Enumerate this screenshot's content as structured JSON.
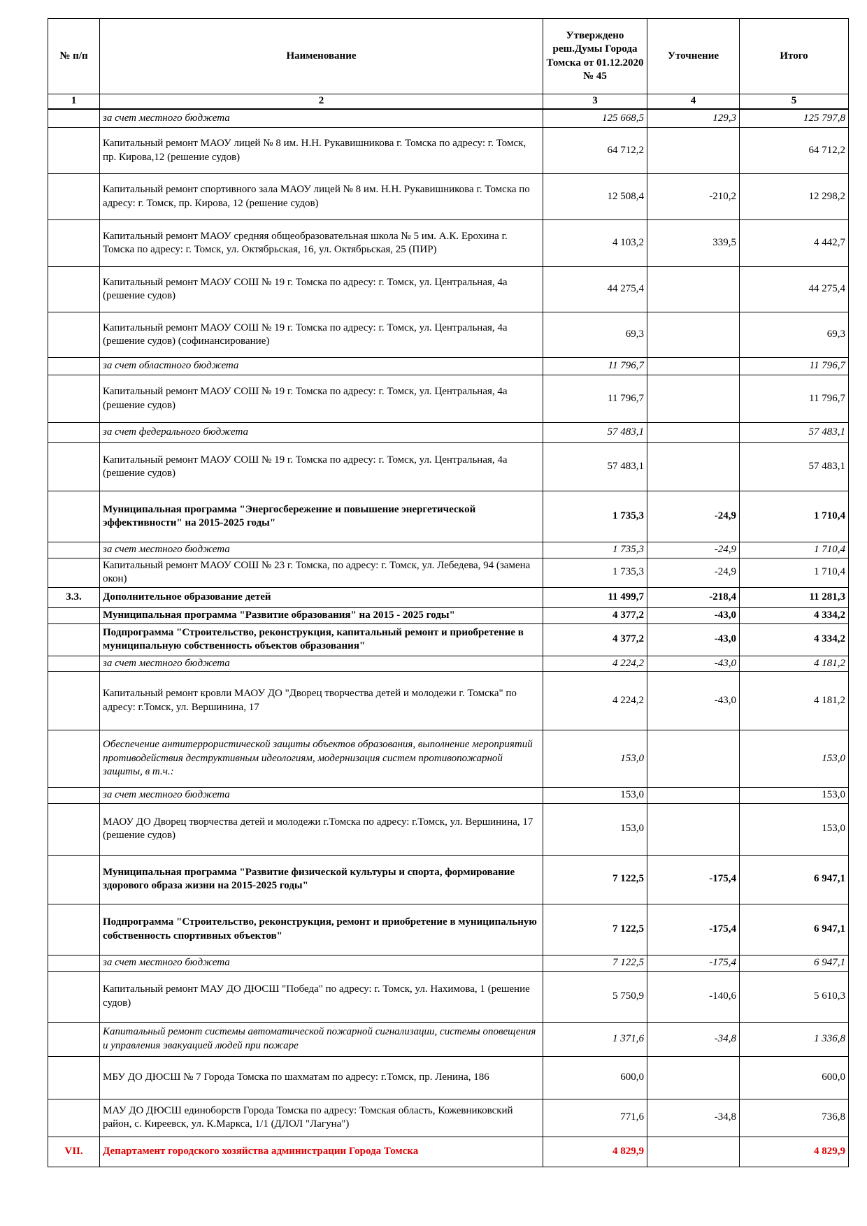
{
  "header": {
    "col1": "№ п/п",
    "col2": "Наименование",
    "col3": "Утверждено реш.Думы Города Томска от 01.12.2020 № 45",
    "col4": "Уточнение",
    "col5": "Итого",
    "numbers": [
      "1",
      "2",
      "3",
      "4",
      "5"
    ]
  },
  "rows": [
    {
      "no": "",
      "name": "за счет местного бюджета",
      "v3": "125 668,5",
      "v4": "129,3",
      "v5": "125 797,8",
      "style": "italic"
    },
    {
      "no": "",
      "name": "Капитальный ремонт МАОУ лицей № 8 им. Н.Н. Рукавишникова г. Томска по адресу: г. Томск, пр. Кирова,12 (решение судов)",
      "v3": "64 712,2",
      "v4": "",
      "v5": "64 712,2",
      "style": "normal"
    },
    {
      "no": "",
      "name": "Капитальный ремонт спортивного зала МАОУ лицей № 8 им. Н.Н. Рукавишникова г. Томска по адресу: г. Томск, пр. Кирова, 12 (решение судов)",
      "v3": "12 508,4",
      "v4": "-210,2",
      "v5": "12 298,2",
      "style": "normal"
    },
    {
      "no": "",
      "name": "Капитальный ремонт МАОУ средняя общеобразовательная школа № 5 им. А.К. Ерохина г. Томска по адресу: г. Томск, ул. Октябрьская, 16, ул. Октябрьская, 25 (ПИР)",
      "v3": "4 103,2",
      "v4": "339,5",
      "v5": "4 442,7",
      "style": "normal"
    },
    {
      "no": "",
      "name": "Капитальный ремонт МАОУ СОШ № 19 г. Томска по адресу: г. Томск, ул. Центральная, 4а (решение судов)",
      "v3": "44 275,4",
      "v4": "",
      "v5": "44 275,4",
      "style": "normal"
    },
    {
      "no": "",
      "name": "Капитальный ремонт МАОУ СОШ № 19 г. Томска по адресу: г. Томск, ул. Центральная, 4а (решение судов) (софинансирование)",
      "v3": "69,3",
      "v4": "",
      "v5": "69,3",
      "style": "normal"
    },
    {
      "no": "",
      "name": "за счет областного бюджета",
      "v3": "11 796,7",
      "v4": "",
      "v5": "11 796,7",
      "style": "italic"
    },
    {
      "no": "",
      "name": "Капитальный ремонт МАОУ СОШ № 19 г. Томска по адресу: г. Томск, ул. Центральная, 4а (решение судов)",
      "v3": "11 796,7",
      "v4": "",
      "v5": "11 796,7",
      "style": "normal"
    },
    {
      "no": "",
      "name": "за счет федерального бюджета",
      "v3": "57 483,1",
      "v4": "",
      "v5": "57 483,1",
      "style": "italic"
    },
    {
      "no": "",
      "name": "Капитальный ремонт МАОУ СОШ № 19 г. Томска по адресу: г. Томск, ул. Центральная, 4а (решение судов)",
      "v3": "57 483,1",
      "v4": "",
      "v5": "57 483,1",
      "style": "normal"
    },
    {
      "no": "",
      "name": "Муниципальная программа \"Энергосбережение и повышение энергетической эффективности\" на 2015-2025 годы\"",
      "v3": "1 735,3",
      "v4": "-24,9",
      "v5": "1 710,4",
      "style": "bold"
    },
    {
      "no": "",
      "name": "за счет местного бюджета",
      "v3": "1 735,3",
      "v4": "-24,9",
      "v5": "1 710,4",
      "style": "italic"
    },
    {
      "no": "",
      "name": "Капитальный ремонт МАОУ СОШ № 23 г. Томска,  по адресу: г. Томск, ул. Лебедева, 94 (замена окон)",
      "v3": "1 735,3",
      "v4": "-24,9",
      "v5": "1 710,4",
      "style": "normal"
    },
    {
      "no": "3.3.",
      "name": "Дополнительное образование детей",
      "v3": "11 499,7",
      "v4": "-218,4",
      "v5": "11 281,3",
      "style": "bold"
    },
    {
      "no": "",
      "name": "Муниципальная программа \"Развитие образования\" на 2015 - 2025 годы\"",
      "v3": "4 377,2",
      "v4": "-43,0",
      "v5": "4 334,2",
      "style": "bold"
    },
    {
      "no": "",
      "name": "Подпрограмма \"Строительство, реконструкция, капитальный ремонт и приобретение в муниципальную собственность объектов образования\"",
      "v3": "4 377,2",
      "v4": "-43,0",
      "v5": "4 334,2",
      "style": "bold"
    },
    {
      "no": "",
      "name": "за счет местного бюджета",
      "v3": "4 224,2",
      "v4": "-43,0",
      "v5": "4 181,2",
      "style": "italic"
    },
    {
      "no": "",
      "name": "Капитальный ремонт кровли МАОУ ДО \"Дворец творчества детей и молодежи г. Томска\"  по адресу: г.Томск, ул. Вершинина, 17",
      "v3": "4 224,2",
      "v4": "-43,0",
      "v5": "4 181,2",
      "style": "normal"
    },
    {
      "no": "",
      "name": "Обеспечение антитеррористической защиты объектов образования, выполнение мероприятий противодействия деструктивным идеологиям, модернизация систем противопожарной защиты, в т.ч.:",
      "v3": "153,0",
      "v4": "",
      "v5": "153,0",
      "style": "italic"
    },
    {
      "no": "",
      "name": "за счет местного бюджета",
      "v3": "153,0",
      "v4": "",
      "v5": "153,0",
      "style": "italic-name"
    },
    {
      "no": "",
      "name": "МАОУ ДО Дворец творчества детей и молодежи г.Томска по адресу: г.Томск, ул. Вершинина, 17 (решение судов)",
      "v3": "153,0",
      "v4": "",
      "v5": "153,0",
      "style": "normal"
    },
    {
      "no": "",
      "name": "Муниципальная программа \"Развитие физической культуры и спорта, формирование здорового образа жизни на 2015-2025 годы\"",
      "v3": "7 122,5",
      "v4": "-175,4",
      "v5": "6 947,1",
      "style": "bold"
    },
    {
      "no": "",
      "name": "Подпрограмма \"Строительство, реконструкция, ремонт и приобретение в муниципальную собственность спортивных объектов\"",
      "v3": "7 122,5",
      "v4": "-175,4",
      "v5": "6 947,1",
      "style": "bold"
    },
    {
      "no": "",
      "name": "за счет местного бюджета",
      "v3": "7 122,5",
      "v4": "-175,4",
      "v5": "6 947,1",
      "style": "italic"
    },
    {
      "no": "",
      "name": "Капитальный ремонт МАУ ДО ДЮСШ \"Победа\" по адресу: г. Томск, ул. Нахимова, 1 (решение судов)",
      "v3": "5 750,9",
      "v4": "-140,6",
      "v5": "5 610,3",
      "style": "normal"
    },
    {
      "no": "",
      "name": "Капитальный ремонт системы автоматической пожарной сигнализации, системы оповещения и управления эвакуацией людей при пожаре",
      "v3": "1 371,6",
      "v4": "-34,8",
      "v5": "1 336,8",
      "style": "italic"
    },
    {
      "no": "",
      "name": "МБУ ДО ДЮСШ № 7 Города Томска по шахматам по адресу: г.Томск, пр. Ленина, 186",
      "v3": "600,0",
      "v4": "",
      "v5": "600,0",
      "style": "normal"
    },
    {
      "no": "",
      "name": "МАУ ДО ДЮСШ единоборств Города Томска по адресу: Томская область, Кожевниковский район, с. Киреевск, ул. К.Маркса, 1/1 (ДЛОЛ \"Лагуна\")",
      "v3": "771,6",
      "v4": "-34,8",
      "v5": "736,8",
      "style": "normal"
    },
    {
      "no": "VII.",
      "name": "Департамент городского хозяйства администрации Города Томска",
      "v3": "4 829,9",
      "v4": "",
      "v5": "4 829,9",
      "style": "red"
    }
  ]
}
